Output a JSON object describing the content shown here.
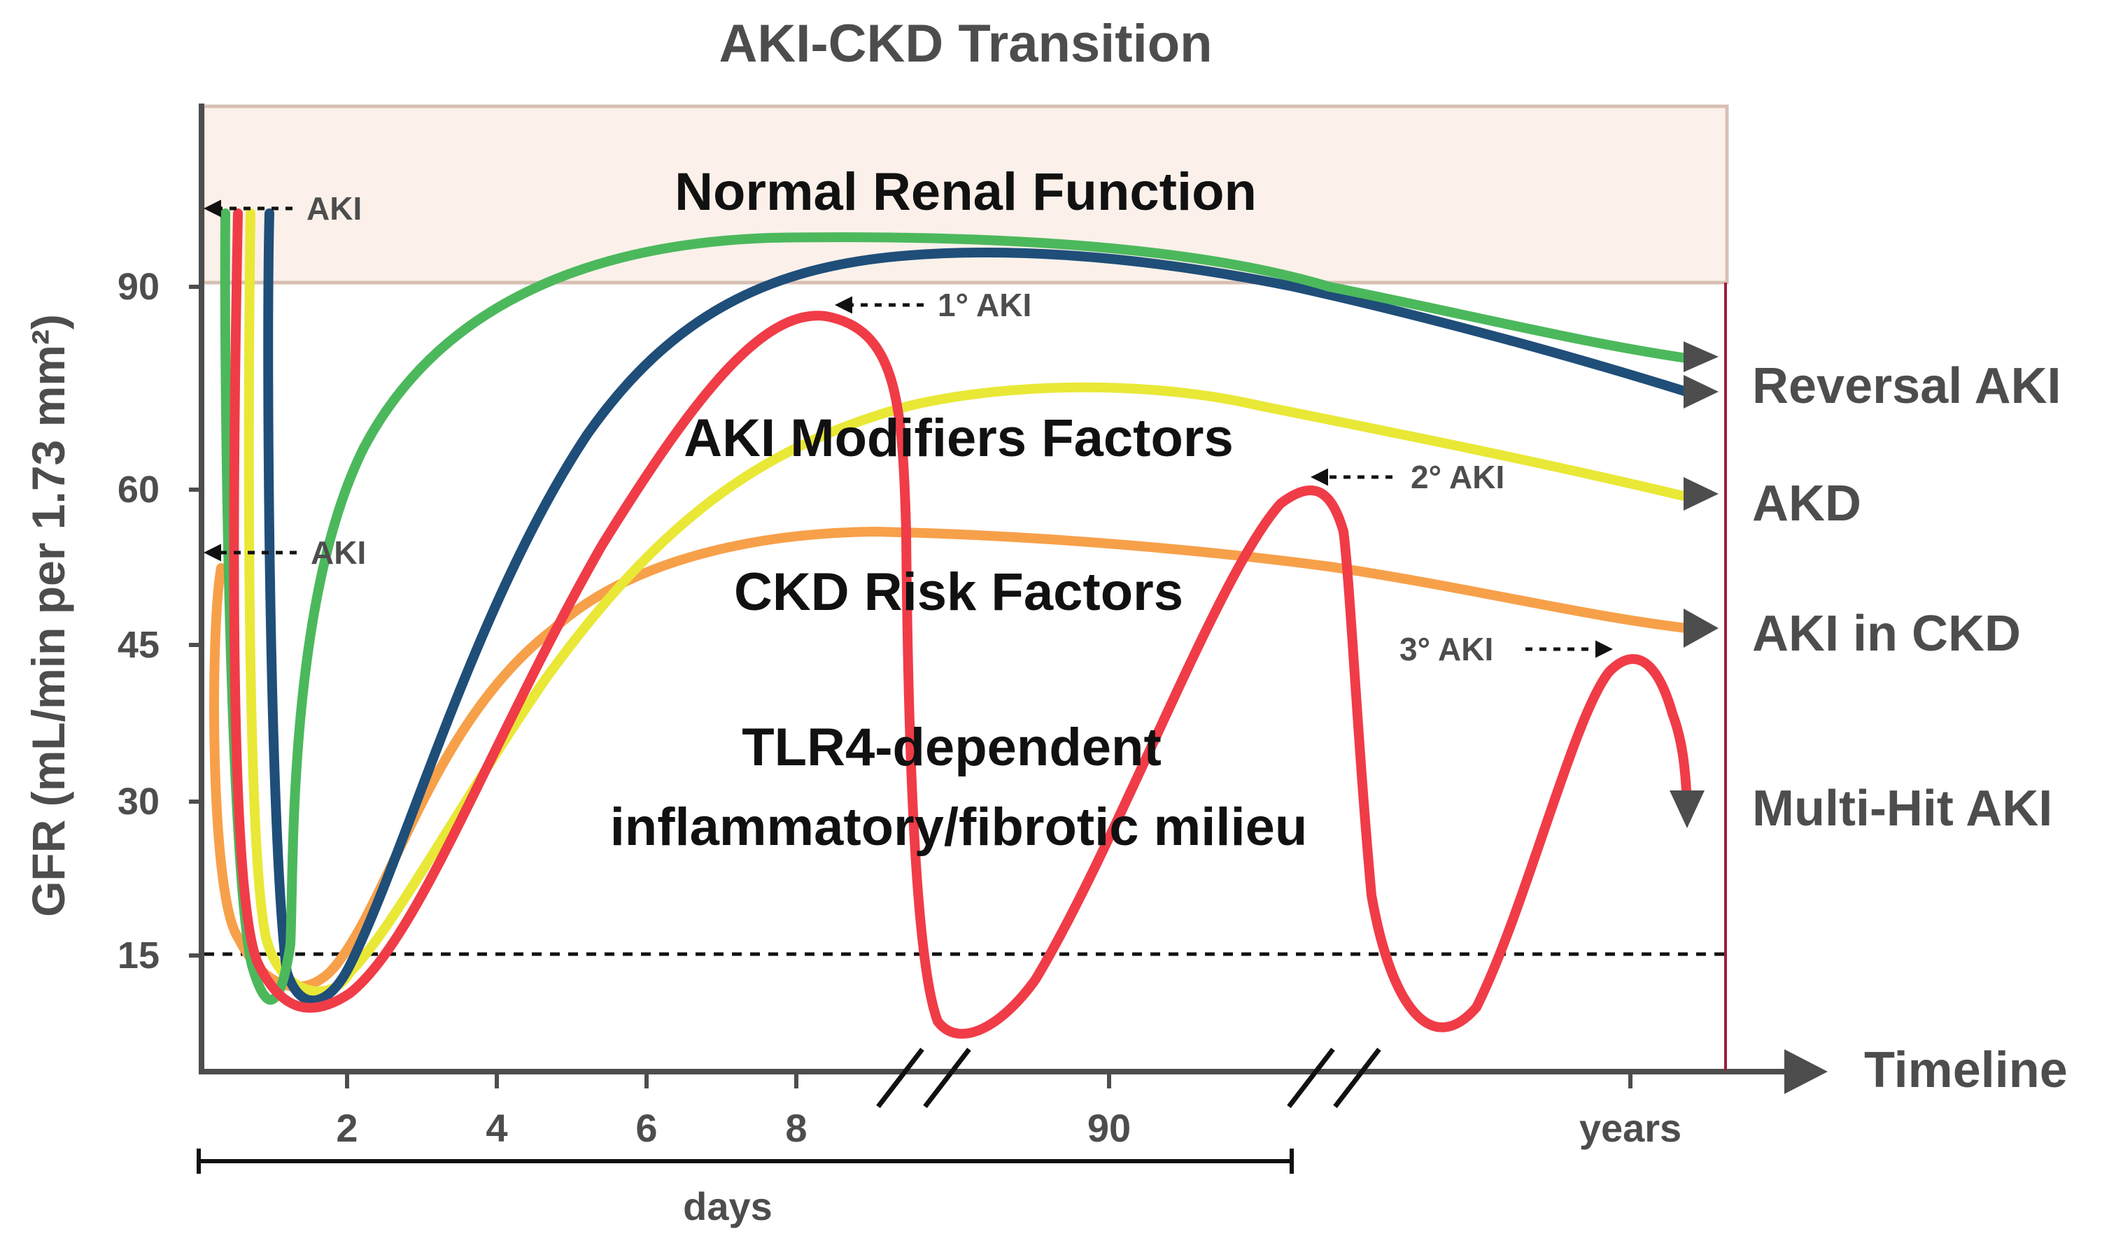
{
  "title": "AKI-CKD Transition",
  "zones": {
    "normal": "Normal Renal Function",
    "modifiers": "AKI Modifiers Factors",
    "ckd_risk": "CKD Risk Factors",
    "tlr4_line1": "TLR4-dependent",
    "tlr4_line2": "inflammatory/fibrotic milieu"
  },
  "y_axis": {
    "label": "GFR (mL/min per 1.73 mm²)",
    "ticks": [
      "90",
      "60",
      "45",
      "30",
      "15"
    ]
  },
  "x_axis": {
    "name": "Timeline",
    "day_ticks": [
      "2",
      "4",
      "6",
      "8"
    ],
    "ninety": "90",
    "years": "years",
    "days_label": "days"
  },
  "annotations": {
    "aki_top": "AKI",
    "aki_mid": "AKI",
    "primary": "1° AKI",
    "secondary": "2° AKI",
    "tertiary": "3° AKI"
  },
  "outcomes": {
    "reversal": "Reversal AKI",
    "akd": "AKD",
    "aki_in_ckd": "AKI in CKD",
    "multi_hit": "Multi-Hit AKI"
  },
  "colors": {
    "green": "#4cb85c",
    "blue": "#1f4e79",
    "yellow": "#e9e836",
    "orange": "#f7a04a",
    "red": "#f03c47",
    "axis": "#4d4d4d",
    "normal_band": "#fbf1ea",
    "normal_border": "#d7bfb3",
    "end_line": "#9b1e3a"
  }
}
